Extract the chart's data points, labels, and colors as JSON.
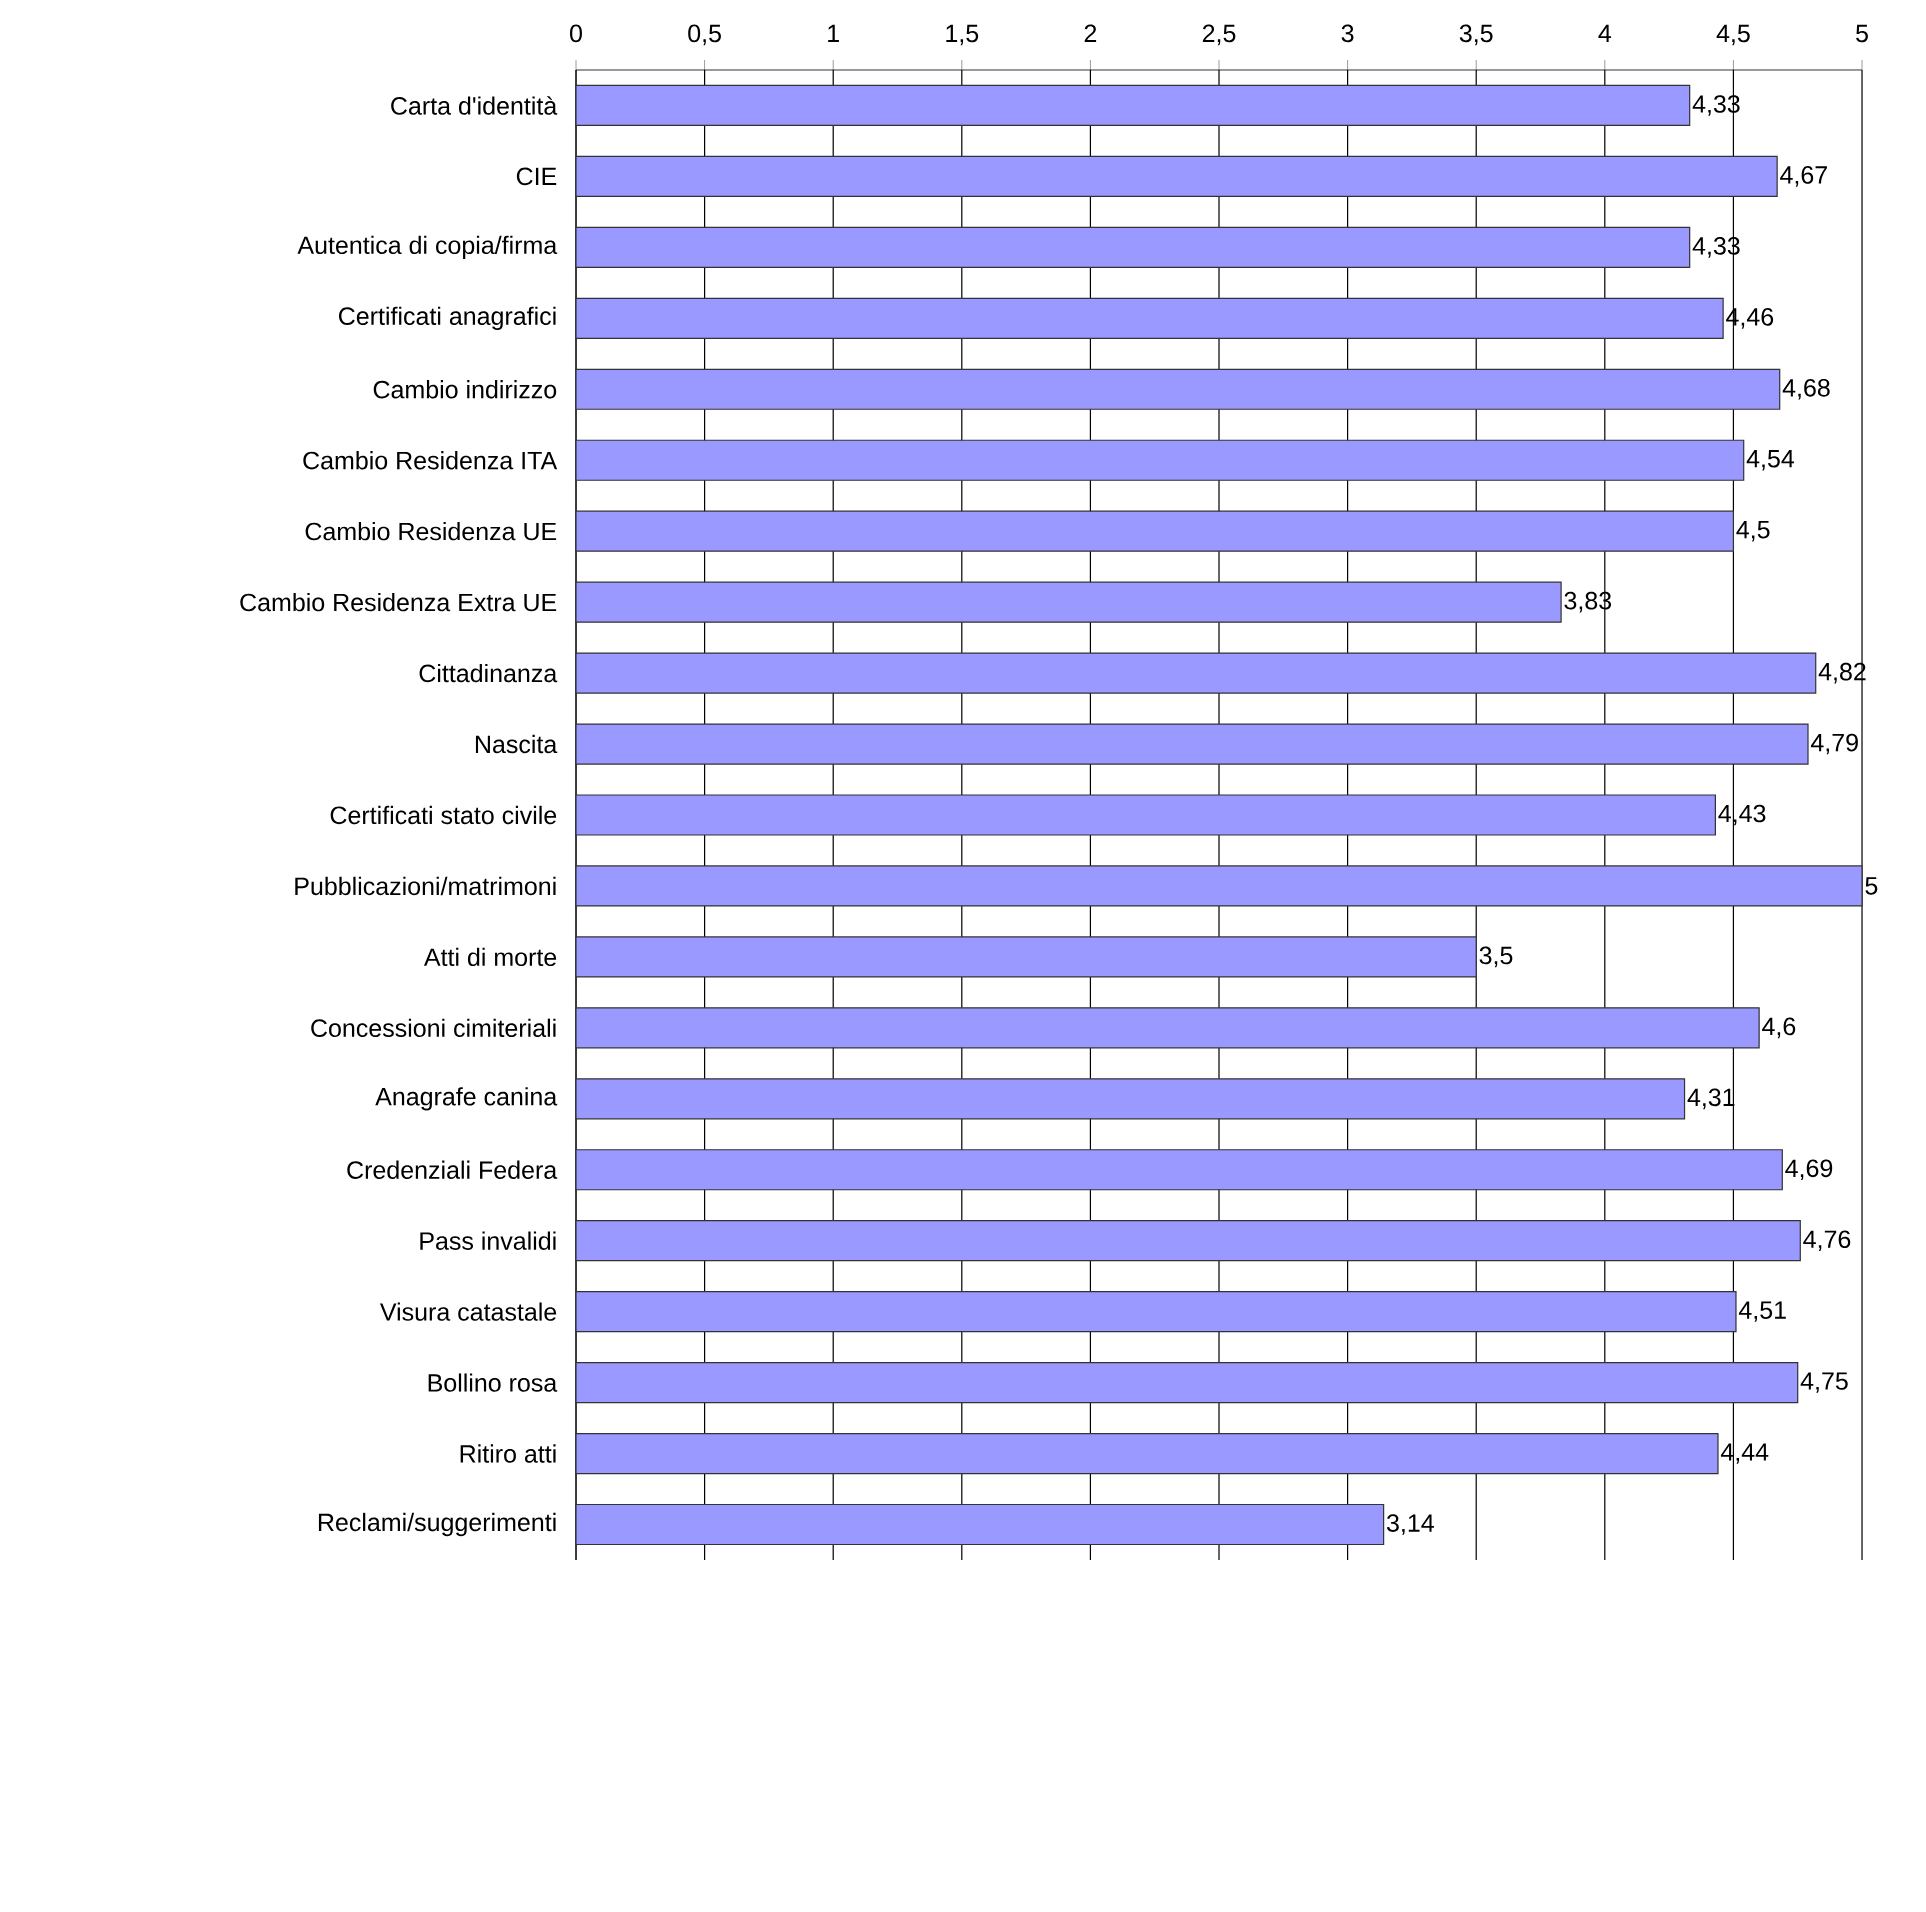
{
  "chart_data": {
    "type": "bar",
    "orientation": "horizontal",
    "color": "#9999ff",
    "categories": [
      "Carta d'identità",
      "CIE",
      "Autentica di copia/firma",
      "Certificati anagrafici",
      "Cambio indirizzo",
      "Cambio Residenza ITA",
      "Cambio Residenza UE",
      "Cambio Residenza Extra UE",
      "Cittadinanza",
      "Nascita",
      "Certificati stato civile",
      "Pubblicazioni/matrimoni",
      "Atti di morte",
      "Concessioni cimiteriali",
      "Anagrafe canina",
      "Credenziali Federa",
      "Pass invalidi",
      "Visura catastale",
      "Bollino rosa",
      "Ritiro atti",
      "Reclami/suggerimenti"
    ],
    "values": [
      4.33,
      4.67,
      4.33,
      4.46,
      4.68,
      4.54,
      4.5,
      3.83,
      4.82,
      4.79,
      4.43,
      5,
      3.5,
      4.6,
      4.31,
      4.69,
      4.76,
      4.51,
      4.75,
      4.44,
      3.14
    ],
    "value_labels": [
      "4,33",
      "4,67",
      "4,33",
      "4,46",
      "4,68",
      "4,54",
      "4,5",
      "3,83",
      "4,82",
      "4,79",
      "4,43",
      "5",
      "3,5",
      "4,6",
      "4,31",
      "4,69",
      "4,76",
      "4,51",
      "4,75",
      "4,44",
      "3,14"
    ],
    "xlim": [
      0,
      5
    ],
    "xticks": [
      0,
      {
        "value": 0.5,
        "label": "0,5"
      },
      1,
      {
        "value": 1.5,
        "label": "1,5"
      },
      2,
      {
        "value": 2.5,
        "label": "2,5"
      },
      3,
      {
        "value": 3.5,
        "label": "3,5"
      },
      4,
      {
        "value": 4.5,
        "label": "4,5"
      },
      5
    ],
    "grid": "x"
  }
}
